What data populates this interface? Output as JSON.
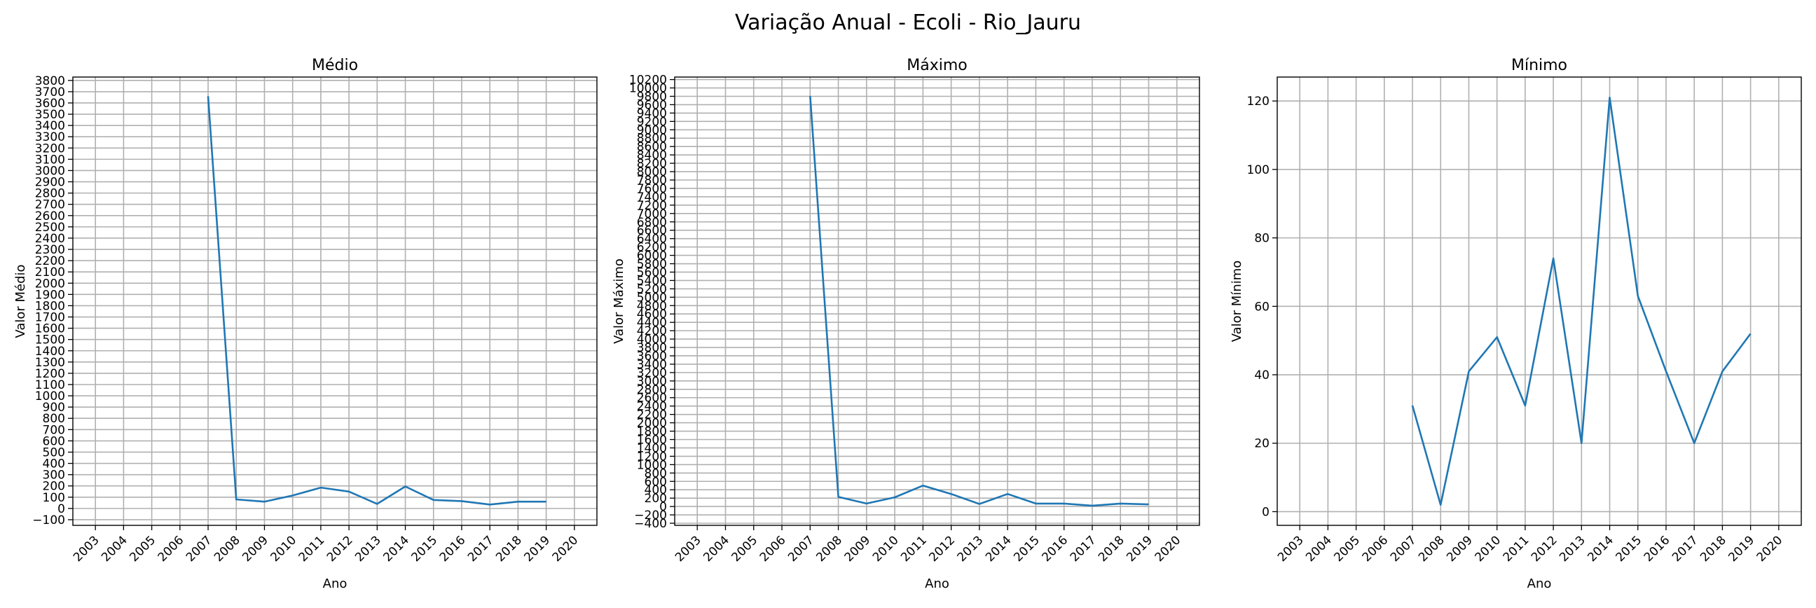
{
  "figure_title": "Variação Anual - Ecoli - Rio_Jauru",
  "line_color": "#1f77b4",
  "grid_color": "#b0b0b0",
  "chart_data": [
    {
      "type": "line",
      "title": "Médio",
      "xlabel": "Ano",
      "ylabel": "Valor Médio",
      "x_ticks": [
        "2003",
        "2004",
        "2005",
        "2006",
        "2007",
        "2008",
        "2009",
        "2010",
        "2011",
        "2012",
        "2013",
        "2014",
        "2015",
        "2016",
        "2017",
        "2018",
        "2019",
        "2020"
      ],
      "xlim": [
        2002.2,
        2020.8
      ],
      "ylim": [
        -150,
        3830
      ],
      "y_tick_start": -100,
      "y_tick_end": 3800,
      "y_tick_step": 100,
      "grid": true,
      "series": [
        {
          "x": [
            2007,
            2008,
            2009,
            2010,
            2011,
            2012,
            2013,
            2014,
            2015,
            2016,
            2017,
            2018,
            2019
          ],
          "y": [
            3660,
            80,
            60,
            115,
            185,
            150,
            40,
            195,
            75,
            65,
            35,
            60,
            60
          ]
        }
      ]
    },
    {
      "type": "line",
      "title": "Máximo",
      "xlabel": "Ano",
      "ylabel": "Valor Máximo",
      "x_ticks": [
        "2003",
        "2004",
        "2005",
        "2006",
        "2007",
        "2008",
        "2009",
        "2010",
        "2011",
        "2012",
        "2013",
        "2014",
        "2015",
        "2016",
        "2017",
        "2018",
        "2019",
        "2020"
      ],
      "xlim": [
        2002.2,
        2020.8
      ],
      "ylim": [
        -450,
        10260
      ],
      "y_tick_start": -400,
      "y_tick_end": 10200,
      "y_tick_step": 200,
      "grid": true,
      "series": [
        {
          "x": [
            2007,
            2008,
            2009,
            2010,
            2011,
            2012,
            2013,
            2014,
            2015,
            2016,
            2017,
            2018,
            2019
          ],
          "y": [
            9810,
            230,
            70,
            220,
            500,
            300,
            60,
            300,
            70,
            70,
            20,
            70,
            50
          ]
        }
      ]
    },
    {
      "type": "line",
      "title": "Mínimo",
      "xlabel": "Ano",
      "ylabel": "Valor Mínimo",
      "x_ticks": [
        "2003",
        "2004",
        "2005",
        "2006",
        "2007",
        "2008",
        "2009",
        "2010",
        "2011",
        "2012",
        "2013",
        "2014",
        "2015",
        "2016",
        "2017",
        "2018",
        "2019",
        "2020"
      ],
      "xlim": [
        2002.2,
        2020.8
      ],
      "ylim": [
        -4,
        127
      ],
      "y_tick_start": 0,
      "y_tick_end": 120,
      "y_tick_step": 20,
      "grid": true,
      "series": [
        {
          "x": [
            2007,
            2008,
            2009,
            2010,
            2011,
            2012,
            2013,
            2014,
            2015,
            2016,
            2017,
            2018,
            2019
          ],
          "y": [
            31,
            2,
            41,
            51,
            31,
            74,
            20,
            121,
            63,
            41,
            20,
            41,
            52
          ]
        }
      ]
    }
  ]
}
